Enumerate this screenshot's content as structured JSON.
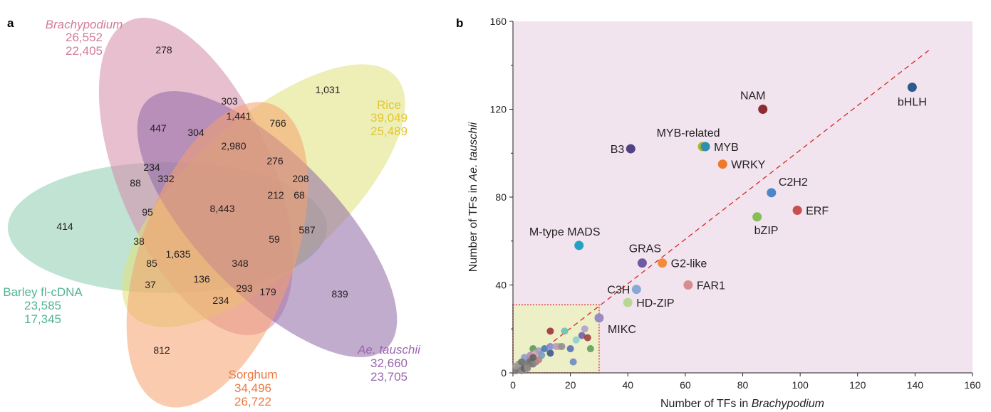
{
  "panels": {
    "a": "a",
    "b": "b"
  },
  "venn": {
    "sets": [
      {
        "name": "Brachypodium",
        "italic": true,
        "counts": [
          "26,552",
          "22,405"
        ],
        "color": "#d48aa8",
        "text_color": "#d27b9a"
      },
      {
        "name": "Rice",
        "italic": false,
        "counts": [
          "39,049",
          "25,489"
        ],
        "color": "#dfe27a",
        "text_color": "#e5c62e"
      },
      {
        "name": "Barley fl-cDNA",
        "italic": false,
        "counts": [
          "23,585",
          "17,345"
        ],
        "color": "#8dccb0",
        "text_color": "#52b592"
      },
      {
        "name": "Ae. tauschii",
        "italic": true,
        "counts": [
          "32,660",
          "23,705"
        ],
        "color": "#8f67a6",
        "text_color": "#9a66ad"
      },
      {
        "name": "Sorghum",
        "italic": false,
        "counts": [
          "34,496",
          "26,722"
        ],
        "color": "#f5a06d",
        "text_color": "#ec7844"
      }
    ],
    "region_counts": [
      "278",
      "1,031",
      "303",
      "1,441",
      "766",
      "447",
      "304",
      "2,980",
      "234",
      "276",
      "208",
      "88",
      "332",
      "8,443",
      "212",
      "68",
      "414",
      "95",
      "587",
      "38",
      "59",
      "1,635",
      "85",
      "348",
      "136",
      "37",
      "293",
      "179",
      "839",
      "234",
      "812"
    ]
  },
  "chart_data": {
    "type": "scatter",
    "title": "",
    "xlabel": "Number of TFs in Brachypodium",
    "ylabel": "Number of TFs in Ae. tauschii",
    "xlabel_parts": [
      "Number of TFs in ",
      "Brachypodium"
    ],
    "ylabel_parts": [
      "Number of TFs in ",
      "Ae. tauschii"
    ],
    "xlim": [
      0,
      160
    ],
    "ylim": [
      0,
      160
    ],
    "xticks": [
      0,
      20,
      40,
      60,
      80,
      100,
      120,
      140,
      160
    ],
    "yticks": [
      0,
      40,
      80,
      120,
      160
    ],
    "background_color": "#f1e4ee",
    "reference_line": {
      "from": [
        0,
        0
      ],
      "to": [
        145,
        147
      ],
      "style": "dashed",
      "color": "#d62728"
    },
    "highlight_box": {
      "x": [
        0,
        30
      ],
      "y": [
        0,
        31
      ],
      "fill": "#edefc6",
      "stroke": "#e05050"
    },
    "labeled_points": [
      {
        "label": "bHLH",
        "x": 139,
        "y": 130,
        "color": "#2a5b8c"
      },
      {
        "label": "NAM",
        "x": 87,
        "y": 120,
        "color": "#8e2c33"
      },
      {
        "label": "MYB-related",
        "x": 66,
        "y": 103,
        "color": "#a8b43a"
      },
      {
        "label": "MYB",
        "x": 67,
        "y": 103,
        "color": "#2e8fb0"
      },
      {
        "label": "B3",
        "x": 41,
        "y": 102,
        "color": "#514382"
      },
      {
        "label": "WRKY",
        "x": 73,
        "y": 95,
        "color": "#ec7a2c"
      },
      {
        "label": "C2H2",
        "x": 90,
        "y": 82,
        "color": "#4a86c8"
      },
      {
        "label": "ERF",
        "x": 99,
        "y": 74,
        "color": "#c94f4f"
      },
      {
        "label": "bZIP",
        "x": 85,
        "y": 71,
        "color": "#86bd55"
      },
      {
        "label": "M-type MADS",
        "x": 23,
        "y": 58,
        "color": "#25a0c2"
      },
      {
        "label": "GRAS",
        "x": 45,
        "y": 50,
        "color": "#6e5aa0"
      },
      {
        "label": "G2-like",
        "x": 52,
        "y": 50,
        "color": "#f28c3a"
      },
      {
        "label": "FAR1",
        "x": 61,
        "y": 40,
        "color": "#d98b8f"
      },
      {
        "label": "C3H",
        "x": 43,
        "y": 38,
        "color": "#8aa8d6"
      },
      {
        "label": "HD-ZIP",
        "x": 40,
        "y": 32,
        "color": "#b6d891"
      },
      {
        "label": "MIKC",
        "x": 30,
        "y": 25,
        "color": "#9b8bc4"
      }
    ],
    "other_points": [
      {
        "x": 1,
        "y": 1,
        "color": "#7a7a7a"
      },
      {
        "x": 2,
        "y": 2,
        "color": "#6d6d6d"
      },
      {
        "x": 3,
        "y": 1,
        "color": "#8a8a8a"
      },
      {
        "x": 3,
        "y": 3,
        "color": "#7e7e7e"
      },
      {
        "x": 4,
        "y": 2,
        "color": "#5f5f5f"
      },
      {
        "x": 5,
        "y": 3,
        "color": "#8e8e8e"
      },
      {
        "x": 5,
        "y": 5,
        "color": "#777777"
      },
      {
        "x": 6,
        "y": 4,
        "color": "#8c7a6a"
      },
      {
        "x": 6,
        "y": 6,
        "color": "#6f6f6f"
      },
      {
        "x": 7,
        "y": 4,
        "color": "#7b7b7b"
      },
      {
        "x": 8,
        "y": 5,
        "color": "#8a8a8a"
      },
      {
        "x": 2,
        "y": 4,
        "color": "#9a9a9a"
      },
      {
        "x": 4,
        "y": 7,
        "color": "#8e9bd0"
      },
      {
        "x": 6,
        "y": 8,
        "color": "#b88bb0"
      },
      {
        "x": 7,
        "y": 11,
        "color": "#5a9a5a"
      },
      {
        "x": 8,
        "y": 9,
        "color": "#e0a0b0"
      },
      {
        "x": 9,
        "y": 6,
        "color": "#c08080"
      },
      {
        "x": 9,
        "y": 10,
        "color": "#a0a0c0"
      },
      {
        "x": 10,
        "y": 8,
        "color": "#7a9ac0"
      },
      {
        "x": 11,
        "y": 11,
        "color": "#4a7ab0"
      },
      {
        "x": 13,
        "y": 9,
        "color": "#3a5a90"
      },
      {
        "x": 13,
        "y": 12,
        "color": "#8a8ad0"
      },
      {
        "x": 13,
        "y": 19,
        "color": "#a0303a"
      },
      {
        "x": 15,
        "y": 12,
        "color": "#b0a0c0"
      },
      {
        "x": 16,
        "y": 12,
        "color": "#c0a0a0"
      },
      {
        "x": 17,
        "y": 12,
        "color": "#909090"
      },
      {
        "x": 18,
        "y": 19,
        "color": "#66c2b0"
      },
      {
        "x": 20,
        "y": 11,
        "color": "#5a70b0"
      },
      {
        "x": 21,
        "y": 5,
        "color": "#6a8ac0"
      },
      {
        "x": 22,
        "y": 15,
        "color": "#8ad0d0"
      },
      {
        "x": 24,
        "y": 17,
        "color": "#7060a0"
      },
      {
        "x": 25,
        "y": 20,
        "color": "#b0a0d0"
      },
      {
        "x": 26,
        "y": 16,
        "color": "#a04040"
      },
      {
        "x": 27,
        "y": 11,
        "color": "#60a060"
      },
      {
        "x": 3,
        "y": 5,
        "color": "#707070"
      },
      {
        "x": 5,
        "y": 2,
        "color": "#8a8a8a"
      },
      {
        "x": 7,
        "y": 7,
        "color": "#606060"
      },
      {
        "x": 1,
        "y": 3,
        "color": "#9a9a9a"
      }
    ]
  }
}
